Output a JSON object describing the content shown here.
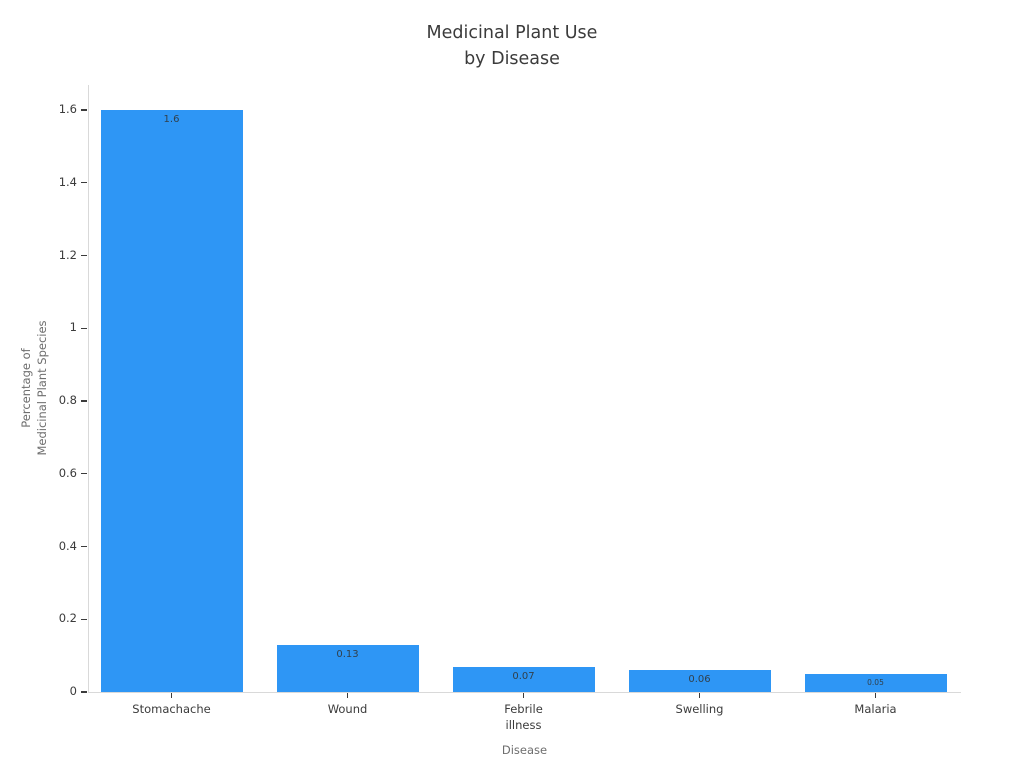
{
  "chart_data": {
    "type": "bar",
    "title_lines": [
      "Medicinal Plant Use",
      "by Disease"
    ],
    "categories": [
      "Stomachache",
      "Wound",
      "Febrile\nillness",
      "Swelling",
      "Malaria"
    ],
    "values": [
      1.6,
      0.13,
      0.07,
      0.06,
      0.05
    ],
    "bar_labels": [
      "1.6",
      "0.13",
      "0.07",
      "0.06",
      "0.05"
    ],
    "xlabel": "Disease",
    "ylabel_lines": [
      "Percentage of",
      "Medicinal Plant Species"
    ],
    "ylim": [
      0,
      1.67
    ],
    "yticks": {
      "values": [
        0,
        0.2,
        0.4,
        0.6,
        0.8,
        1,
        1.2,
        1.4,
        1.6
      ],
      "labels": [
        "0",
        "0.2",
        "0.4",
        "0.6",
        "0.8",
        "1",
        "1.2",
        "1.4",
        "1.6"
      ]
    },
    "grid": false,
    "legend": null,
    "colors": {
      "bar": "#2e96f5",
      "bar_value_label": "#31404c",
      "tick_label": "#3b3b3b",
      "axis_title": "#6e6e6e",
      "spine": "#d9d9d9",
      "title": "#3b3b3b"
    }
  }
}
